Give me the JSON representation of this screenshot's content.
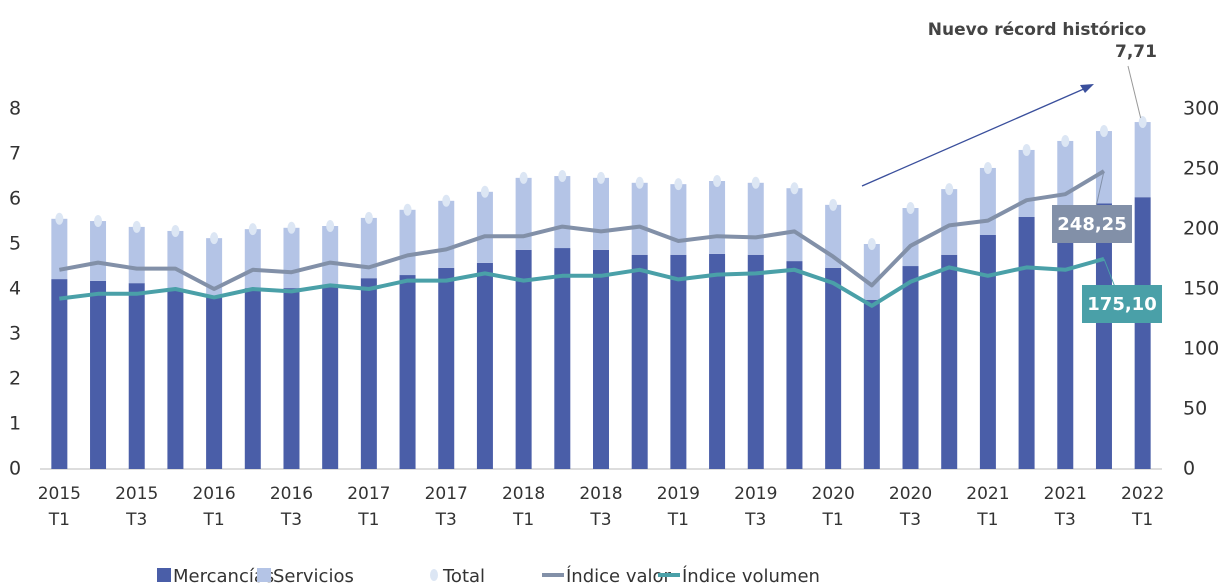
{
  "chart_data": {
    "type": "bar",
    "annotations": [
      "Nuevo récord histórico"
    ],
    "categories": [
      [
        "2015",
        "T1"
      ],
      null,
      [
        "2015",
        "T3"
      ],
      null,
      [
        "2016",
        "T1"
      ],
      null,
      [
        "2016",
        "T3"
      ],
      null,
      [
        "2017",
        "T1"
      ],
      null,
      [
        "2017",
        "T3"
      ],
      null,
      [
        "2018",
        "T1"
      ],
      null,
      [
        "2018",
        "T3"
      ],
      null,
      [
        "2019",
        "T1"
      ],
      null,
      [
        "2019",
        "T3"
      ],
      null,
      [
        "2020",
        "T1"
      ],
      null,
      [
        "2020",
        "T3"
      ],
      null,
      [
        "2021",
        "T1"
      ],
      null,
      [
        "2021",
        "T3"
      ],
      null,
      [
        "2022",
        "T1"
      ]
    ],
    "ylim": [
      0,
      8
    ],
    "yticks": [
      0,
      1,
      2,
      3,
      4,
      5,
      6,
      7,
      8
    ],
    "y2lim": [
      0,
      300
    ],
    "y2ticks": [
      0,
      50,
      100,
      150,
      200,
      250,
      300
    ],
    "series": [
      {
        "name": "Mercancías",
        "color": "#4a5ea8",
        "stack": true,
        "values": [
          4.22,
          4.18,
          4.13,
          3.98,
          3.82,
          4.02,
          4.02,
          4.04,
          4.24,
          4.31,
          4.47,
          4.58,
          4.87,
          4.91,
          4.87,
          4.76,
          4.76,
          4.78,
          4.76,
          4.62,
          4.47,
          3.76,
          4.51,
          4.76,
          5.2,
          5.6,
          5.65,
          5.9,
          6.04
        ]
      },
      {
        "name": "Servicios",
        "color": "#b4c4e6",
        "stack": true,
        "values": [
          1.34,
          1.33,
          1.25,
          1.31,
          1.31,
          1.31,
          1.34,
          1.36,
          1.34,
          1.45,
          1.49,
          1.58,
          1.6,
          1.6,
          1.6,
          1.6,
          1.57,
          1.62,
          1.6,
          1.62,
          1.4,
          1.24,
          1.29,
          1.46,
          1.49,
          1.49,
          1.64,
          1.61,
          1.67
        ]
      },
      {
        "name": "Total",
        "color": "#dce6f4",
        "mark": "dot",
        "values": [
          5.56,
          5.51,
          5.38,
          5.29,
          5.13,
          5.33,
          5.36,
          5.4,
          5.58,
          5.76,
          5.96,
          6.16,
          6.47,
          6.51,
          6.47,
          6.36,
          6.33,
          6.4,
          6.36,
          6.24,
          5.87,
          5,
          5.8,
          6.22,
          6.69,
          7.09,
          7.29,
          7.51,
          7.71
        ],
        "value_labels": [
          null,
          null,
          null,
          null,
          null,
          null,
          null,
          null,
          null,
          null,
          null,
          null,
          null,
          null,
          null,
          null,
          null,
          null,
          null,
          null,
          null,
          null,
          null,
          null,
          null,
          null,
          null,
          null,
          "7,71"
        ]
      },
      {
        "name": "Índice valor",
        "color": "#8290a8",
        "axis": "y2",
        "mark": "line",
        "values": [
          166,
          172,
          167,
          167,
          150,
          166,
          164,
          172,
          168,
          178,
          183,
          194,
          194,
          202,
          198,
          202,
          190,
          194,
          193,
          198,
          177,
          153,
          186,
          203,
          207,
          224,
          229,
          248.25,
          null
        ],
        "value_labels": [
          null,
          null,
          null,
          null,
          null,
          null,
          null,
          null,
          null,
          null,
          null,
          null,
          null,
          null,
          null,
          null,
          null,
          null,
          null,
          null,
          null,
          null,
          null,
          null,
          null,
          null,
          null,
          "248,25",
          null
        ]
      },
      {
        "name": "Índice volumen",
        "color": "#4aa0a8",
        "axis": "y2",
        "mark": "line",
        "values": [
          142,
          146,
          146,
          150,
          143,
          150,
          148,
          153,
          150,
          157,
          157,
          163,
          157,
          161,
          161,
          166,
          158,
          162,
          163,
          166,
          155,
          136,
          156,
          168,
          161,
          168,
          166,
          175.1,
          null
        ],
        "value_labels": [
          null,
          null,
          null,
          null,
          null,
          null,
          null,
          null,
          null,
          null,
          null,
          null,
          null,
          null,
          null,
          null,
          null,
          null,
          null,
          null,
          null,
          null,
          null,
          null,
          null,
          null,
          null,
          "175,10",
          null
        ]
      }
    ]
  }
}
